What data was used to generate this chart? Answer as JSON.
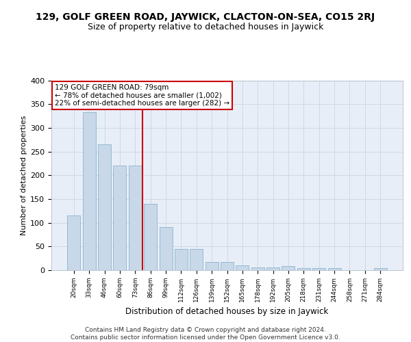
{
  "title": "129, GOLF GREEN ROAD, JAYWICK, CLACTON-ON-SEA, CO15 2RJ",
  "subtitle": "Size of property relative to detached houses in Jaywick",
  "xlabel": "Distribution of detached houses by size in Jaywick",
  "ylabel": "Number of detached properties",
  "categories": [
    "20sqm",
    "33sqm",
    "46sqm",
    "60sqm",
    "73sqm",
    "86sqm",
    "99sqm",
    "112sqm",
    "126sqm",
    "139sqm",
    "152sqm",
    "165sqm",
    "178sqm",
    "192sqm",
    "205sqm",
    "218sqm",
    "231sqm",
    "244sqm",
    "258sqm",
    "271sqm",
    "284sqm"
  ],
  "values": [
    115,
    333,
    265,
    221,
    221,
    140,
    91,
    45,
    44,
    18,
    18,
    10,
    6,
    6,
    9,
    4,
    4,
    5,
    0,
    0,
    5
  ],
  "bar_color": "#c8d8e8",
  "bar_edge_color": "#7aaac8",
  "vline_color": "#cc0000",
  "annotation_text": "129 GOLF GREEN ROAD: 79sqm\n← 78% of detached houses are smaller (1,002)\n22% of semi-detached houses are larger (282) →",
  "annotation_box_color": "#ffffff",
  "annotation_box_edge": "#cc0000",
  "ylim": [
    0,
    400
  ],
  "yticks": [
    0,
    50,
    100,
    150,
    200,
    250,
    300,
    350,
    400
  ],
  "grid_color": "#ccd4e0",
  "background_color": "#e8eef8",
  "footer": "Contains HM Land Registry data © Crown copyright and database right 2024.\nContains public sector information licensed under the Open Government Licence v3.0.",
  "title_fontsize": 10,
  "subtitle_fontsize": 9
}
